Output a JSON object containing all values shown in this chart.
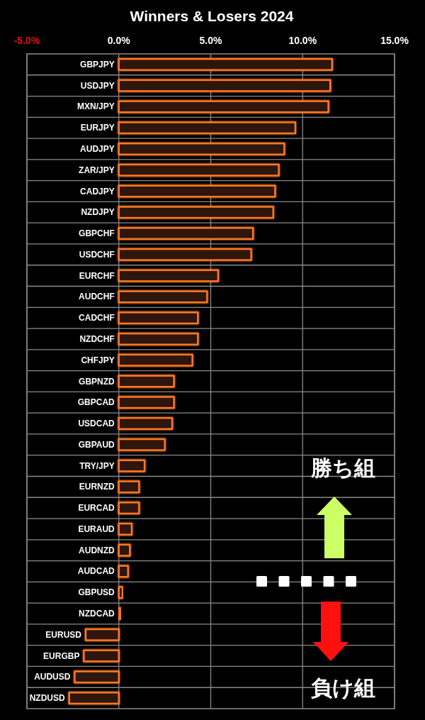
{
  "chart_data": {
    "type": "bar",
    "orientation": "horizontal",
    "title": "Winners & Losers 2024",
    "categories": [
      "GBPJPY",
      "USDJPY",
      "MXN/JPY",
      "EURJPY",
      "AUDJPY",
      "ZAR/JPY",
      "CADJPY",
      "NZDJPY",
      "GBPCHF",
      "USDCHF",
      "EURCHF",
      "AUDCHF",
      "CADCHF",
      "NZDCHF",
      "CHFJPY",
      "GBPNZD",
      "GBPCAD",
      "USDCAD",
      "GBPAUD",
      "TRY/JPY",
      "EURNZD",
      "EURCAD",
      "EURAUD",
      "AUDNZD",
      "AUDCAD",
      "GBPUSD",
      "NZDCAD",
      "EURUSD",
      "EURGBP",
      "AUDUSD",
      "NZDUSD"
    ],
    "values": [
      11.6,
      11.5,
      11.4,
      9.6,
      9.0,
      8.7,
      8.5,
      8.4,
      7.3,
      7.2,
      5.4,
      4.8,
      4.3,
      4.3,
      4.0,
      3.0,
      3.0,
      2.9,
      2.5,
      1.4,
      1.1,
      1.1,
      0.7,
      0.6,
      0.5,
      0.2,
      0.1,
      -1.8,
      -1.9,
      -2.4,
      -2.7
    ],
    "color": "#ff7a26",
    "xlim": [
      -5,
      15
    ],
    "xticks": [
      {
        "value": -5,
        "label": "-5.0%"
      },
      {
        "value": 0,
        "label": "0.0%"
      },
      {
        "value": 5,
        "label": "5.0%"
      },
      {
        "value": 10,
        "label": "10.0%"
      },
      {
        "value": 15,
        "label": "15.0%"
      }
    ],
    "grid": true,
    "annotations": [
      "勝ち組",
      "負け組"
    ]
  }
}
